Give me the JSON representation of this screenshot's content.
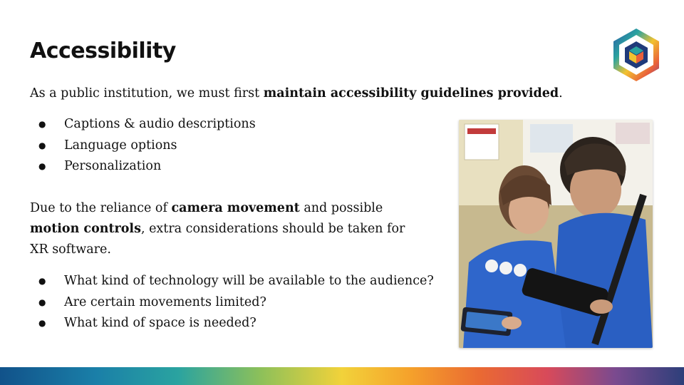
{
  "slide": {
    "title": "Accessibility",
    "intro": {
      "before": "As a public institution, we must first ",
      "bold": "maintain accessibility guidelines provided",
      "after": "."
    },
    "bullets_1": [
      "Captions & audio descriptions",
      "Language options",
      "Personalization"
    ],
    "para2": {
      "t1": "Due to the reliance of ",
      "b1": "camera movement",
      "t2": " and possible",
      "b2": "motion controls",
      "t3": ", extra considerations should be taken for",
      "t4": "XR software."
    },
    "bullets_2": [
      "What kind of technology will be available to the audience?",
      "Are certain movements limited?",
      "What kind of space is needed?"
    ]
  },
  "logo": {
    "icon": "hexagon-cube-logo"
  },
  "photo": {
    "icon": "children-using-tablets-photo"
  },
  "colors": {
    "text": "#111111",
    "shirt_blue": "#2a5fc2",
    "logo_navy": "#1f3a7a"
  }
}
